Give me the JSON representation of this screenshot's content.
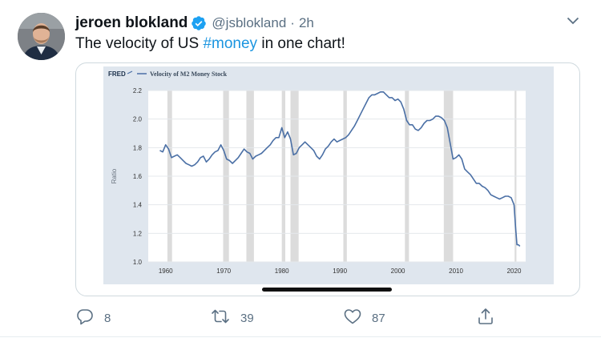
{
  "tweet": {
    "author": {
      "display_name": "jeroen blokland",
      "handle": "@jsblokland",
      "separator": "·",
      "time": "2h"
    },
    "text_before": "The velocity of US ",
    "hashtag": "#money",
    "text_after": " in one chart!",
    "actions": {
      "reply_count": "8",
      "retweet_count": "39",
      "like_count": "87"
    },
    "icons": {
      "verified": "verified-badge-icon",
      "more": "chevron-down-icon",
      "reply": "reply-icon",
      "retweet": "retweet-icon",
      "like": "heart-icon",
      "share": "share-icon"
    },
    "colors": {
      "verified": "#1da1f2",
      "hashtag": "#1b95e0",
      "secondary_text": "#5b7083",
      "series_line": "#4a6fa5"
    }
  },
  "chart_data": {
    "type": "line",
    "source_logo": "FRED",
    "title": "Velocity of M2 Money Stock",
    "ylabel": "Ratio",
    "xlabel": "",
    "xlim": [
      1957,
      2022
    ],
    "ylim": [
      1.0,
      2.2
    ],
    "y_ticks": [
      "1.0",
      "1.2",
      "1.4",
      "1.6",
      "1.8",
      "2.0",
      "2.2"
    ],
    "x_ticks": [
      "1960",
      "1970",
      "1980",
      "1990",
      "2000",
      "2010",
      "2020"
    ],
    "grid": "horizontal",
    "recessions": [
      [
        1960.3,
        1961.1
      ],
      [
        1969.9,
        1970.9
      ],
      [
        1973.9,
        1975.2
      ],
      [
        1980.0,
        1980.6
      ],
      [
        1981.5,
        1982.9
      ],
      [
        1990.6,
        1991.2
      ],
      [
        2001.2,
        2001.9
      ],
      [
        2007.9,
        2009.5
      ],
      [
        2020.1,
        2020.4
      ]
    ],
    "series": [
      {
        "x": [
          1959.0,
          1959.5,
          1960.0,
          1960.5,
          1961.0,
          1961.5,
          1962.0,
          1962.5,
          1963.0,
          1963.5,
          1964.0,
          1964.5,
          1965.0,
          1965.5,
          1966.0,
          1966.5,
          1967.0,
          1967.5,
          1968.0,
          1968.5,
          1969.0,
          1969.5,
          1970.0,
          1970.5,
          1971.0,
          1971.5,
          1972.0,
          1972.5,
          1973.0,
          1973.5,
          1974.0,
          1974.5,
          1975.0,
          1975.5,
          1976.0,
          1976.5,
          1977.0,
          1977.5,
          1978.0,
          1978.5,
          1979.0,
          1979.5,
          1980.0,
          1980.5,
          1981.0,
          1981.5,
          1982.0,
          1982.5,
          1983.0,
          1983.5,
          1984.0,
          1984.5,
          1985.0,
          1985.5,
          1986.0,
          1986.5,
          1987.0,
          1987.5,
          1988.0,
          1988.5,
          1989.0,
          1989.5,
          1990.0,
          1990.5,
          1991.0,
          1991.5,
          1992.0,
          1992.5,
          1993.0,
          1993.5,
          1994.0,
          1994.5,
          1995.0,
          1995.5,
          1996.0,
          1996.5,
          1997.0,
          1997.5,
          1998.0,
          1998.5,
          1999.0,
          1999.5,
          2000.0,
          2000.5,
          2001.0,
          2001.5,
          2002.0,
          2002.5,
          2003.0,
          2003.5,
          2004.0,
          2004.5,
          2005.0,
          2005.5,
          2006.0,
          2006.5,
          2007.0,
          2007.5,
          2008.0,
          2008.5,
          2009.0,
          2009.5,
          2010.0,
          2010.5,
          2011.0,
          2011.5,
          2012.0,
          2012.5,
          2013.0,
          2013.5,
          2014.0,
          2014.5,
          2015.0,
          2015.5,
          2016.0,
          2016.5,
          2017.0,
          2017.5,
          2018.0,
          2018.5,
          2019.0,
          2019.5,
          2020.0,
          2020.25,
          2020.5,
          2020.75,
          2021.0
        ],
        "y": [
          1.78,
          1.77,
          1.82,
          1.79,
          1.73,
          1.74,
          1.75,
          1.73,
          1.71,
          1.69,
          1.68,
          1.67,
          1.68,
          1.7,
          1.73,
          1.74,
          1.7,
          1.72,
          1.75,
          1.77,
          1.78,
          1.82,
          1.78,
          1.72,
          1.71,
          1.69,
          1.71,
          1.73,
          1.76,
          1.79,
          1.77,
          1.76,
          1.72,
          1.74,
          1.75,
          1.76,
          1.78,
          1.8,
          1.82,
          1.85,
          1.87,
          1.87,
          1.94,
          1.87,
          1.91,
          1.86,
          1.75,
          1.76,
          1.8,
          1.82,
          1.84,
          1.82,
          1.8,
          1.78,
          1.74,
          1.72,
          1.75,
          1.79,
          1.81,
          1.84,
          1.86,
          1.84,
          1.85,
          1.86,
          1.87,
          1.89,
          1.92,
          1.95,
          1.99,
          2.03,
          2.07,
          2.11,
          2.15,
          2.17,
          2.17,
          2.18,
          2.19,
          2.19,
          2.17,
          2.15,
          2.15,
          2.13,
          2.14,
          2.12,
          2.07,
          1.99,
          1.96,
          1.96,
          1.93,
          1.92,
          1.94,
          1.97,
          1.99,
          1.99,
          2.0,
          2.02,
          2.02,
          2.01,
          1.99,
          1.94,
          1.83,
          1.72,
          1.73,
          1.75,
          1.72,
          1.65,
          1.63,
          1.61,
          1.58,
          1.55,
          1.55,
          1.53,
          1.52,
          1.5,
          1.47,
          1.46,
          1.45,
          1.44,
          1.45,
          1.46,
          1.46,
          1.45,
          1.4,
          1.25,
          1.12,
          1.12,
          1.11
        ]
      }
    ]
  }
}
